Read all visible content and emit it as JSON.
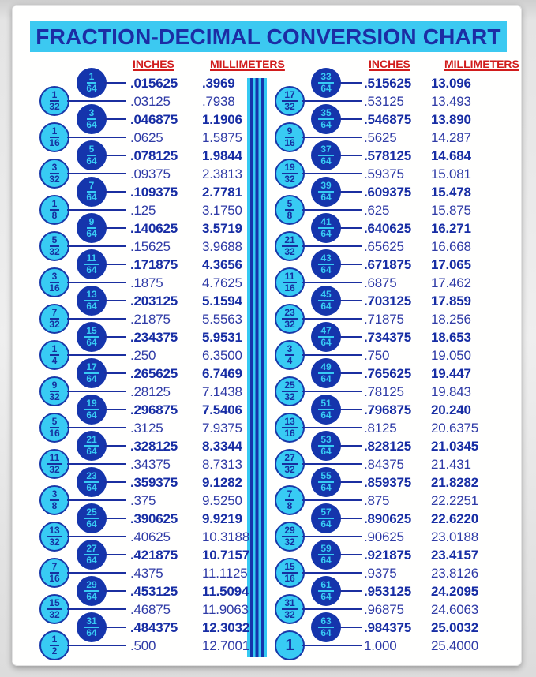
{
  "title": "FRACTION-DECIMAL CONVERSION CHART",
  "colors": {
    "cyan_accent": "#38cbf4",
    "navy_circle": "#1535ac",
    "navy_text": "#1c2da4",
    "header_red": "#d11c1c"
  },
  "columns": [
    {
      "headers": {
        "inches": "INCHES",
        "millimeters": "MILLIMETERS"
      },
      "rows": [
        {
          "fraction": "1/64",
          "num": "1",
          "den": "64",
          "in": ".015625",
          "mm": ".3969",
          "emph": true
        },
        {
          "fraction": "1/32",
          "num": "1",
          "den": "32",
          "in": ".03125",
          "mm": ".7938",
          "emph": false
        },
        {
          "fraction": "3/64",
          "num": "3",
          "den": "64",
          "in": ".046875",
          "mm": "1.1906",
          "emph": true
        },
        {
          "fraction": "1/16",
          "num": "1",
          "den": "16",
          "in": ".0625",
          "mm": "1.5875",
          "emph": false
        },
        {
          "fraction": "5/64",
          "num": "5",
          "den": "64",
          "in": ".078125",
          "mm": "1.9844",
          "emph": true
        },
        {
          "fraction": "3/32",
          "num": "3",
          "den": "32",
          "in": ".09375",
          "mm": "2.3813",
          "emph": false
        },
        {
          "fraction": "7/64",
          "num": "7",
          "den": "64",
          "in": ".109375",
          "mm": "2.7781",
          "emph": true
        },
        {
          "fraction": "1/8",
          "num": "1",
          "den": "8",
          "in": ".125",
          "mm": "3.1750",
          "emph": false
        },
        {
          "fraction": "9/64",
          "num": "9",
          "den": "64",
          "in": ".140625",
          "mm": "3.5719",
          "emph": true
        },
        {
          "fraction": "5/32",
          "num": "5",
          "den": "32",
          "in": ".15625",
          "mm": "3.9688",
          "emph": false
        },
        {
          "fraction": "11/64",
          "num": "11",
          "den": "64",
          "in": ".171875",
          "mm": "4.3656",
          "emph": true
        },
        {
          "fraction": "3/16",
          "num": "3",
          "den": "16",
          "in": ".1875",
          "mm": "4.7625",
          "emph": false
        },
        {
          "fraction": "13/64",
          "num": "13",
          "den": "64",
          "in": ".203125",
          "mm": "5.1594",
          "emph": true
        },
        {
          "fraction": "7/32",
          "num": "7",
          "den": "32",
          "in": ".21875",
          "mm": "5.5563",
          "emph": false
        },
        {
          "fraction": "15/64",
          "num": "15",
          "den": "64",
          "in": ".234375",
          "mm": "5.9531",
          "emph": true
        },
        {
          "fraction": "1/4",
          "num": "1",
          "den": "4",
          "in": ".250",
          "mm": "6.3500",
          "emph": false
        },
        {
          "fraction": "17/64",
          "num": "17",
          "den": "64",
          "in": ".265625",
          "mm": "6.7469",
          "emph": true
        },
        {
          "fraction": "9/32",
          "num": "9",
          "den": "32",
          "in": ".28125",
          "mm": "7.1438",
          "emph": false
        },
        {
          "fraction": "19/64",
          "num": "19",
          "den": "64",
          "in": ".296875",
          "mm": "7.5406",
          "emph": true
        },
        {
          "fraction": "5/16",
          "num": "5",
          "den": "16",
          "in": ".3125",
          "mm": "7.9375",
          "emph": false
        },
        {
          "fraction": "21/64",
          "num": "21",
          "den": "64",
          "in": ".328125",
          "mm": "8.3344",
          "emph": true
        },
        {
          "fraction": "11/32",
          "num": "11",
          "den": "32",
          "in": ".34375",
          "mm": "8.7313",
          "emph": false
        },
        {
          "fraction": "23/64",
          "num": "23",
          "den": "64",
          "in": ".359375",
          "mm": "9.1282",
          "emph": true
        },
        {
          "fraction": "3/8",
          "num": "3",
          "den": "8",
          "in": ".375",
          "mm": "9.5250",
          "emph": false
        },
        {
          "fraction": "25/64",
          "num": "25",
          "den": "64",
          "in": ".390625",
          "mm": "9.9219",
          "emph": true
        },
        {
          "fraction": "13/32",
          "num": "13",
          "den": "32",
          "in": ".40625",
          "mm": "10.3188",
          "emph": false
        },
        {
          "fraction": "27/64",
          "num": "27",
          "den": "64",
          "in": ".421875",
          "mm": "10.7157",
          "emph": true
        },
        {
          "fraction": "7/16",
          "num": "7",
          "den": "16",
          "in": ".4375",
          "mm": "11.1125",
          "emph": false
        },
        {
          "fraction": "29/64",
          "num": "29",
          "den": "64",
          "in": ".453125",
          "mm": "11.5094",
          "emph": true
        },
        {
          "fraction": "15/32",
          "num": "15",
          "den": "32",
          "in": ".46875",
          "mm": "11.9063",
          "emph": false
        },
        {
          "fraction": "31/64",
          "num": "31",
          "den": "64",
          "in": ".484375",
          "mm": "12.3032",
          "emph": true
        },
        {
          "fraction": "1/2",
          "num": "1",
          "den": "2",
          "in": ".500",
          "mm": "12.7001",
          "emph": false
        }
      ]
    },
    {
      "headers": {
        "inches": "INCHES",
        "millimeters": "MILLIMETERS"
      },
      "rows": [
        {
          "fraction": "33/64",
          "num": "33",
          "den": "64",
          "in": ".515625",
          "mm": "13.096",
          "emph": true
        },
        {
          "fraction": "17/32",
          "num": "17",
          "den": "32",
          "in": ".53125",
          "mm": "13.493",
          "emph": false
        },
        {
          "fraction": "35/64",
          "num": "35",
          "den": "64",
          "in": ".546875",
          "mm": "13.890",
          "emph": true
        },
        {
          "fraction": "9/16",
          "num": "9",
          "den": "16",
          "in": ".5625",
          "mm": "14.287",
          "emph": false
        },
        {
          "fraction": "37/64",
          "num": "37",
          "den": "64",
          "in": ".578125",
          "mm": "14.684",
          "emph": true
        },
        {
          "fraction": "19/32",
          "num": "19",
          "den": "32",
          "in": ".59375",
          "mm": "15.081",
          "emph": false
        },
        {
          "fraction": "39/64",
          "num": "39",
          "den": "64",
          "in": ".609375",
          "mm": "15.478",
          "emph": true
        },
        {
          "fraction": "5/8",
          "num": "5",
          "den": "8",
          "in": ".625",
          "mm": "15.875",
          "emph": false
        },
        {
          "fraction": "41/64",
          "num": "41",
          "den": "64",
          "in": ".640625",
          "mm": "16.271",
          "emph": true
        },
        {
          "fraction": "21/32",
          "num": "21",
          "den": "32",
          "in": ".65625",
          "mm": "16.668",
          "emph": false
        },
        {
          "fraction": "43/64",
          "num": "43",
          "den": "64",
          "in": ".671875",
          "mm": "17.065",
          "emph": true
        },
        {
          "fraction": "11/16",
          "num": "11",
          "den": "16",
          "in": ".6875",
          "mm": "17.462",
          "emph": false
        },
        {
          "fraction": "45/64",
          "num": "45",
          "den": "64",
          "in": ".703125",
          "mm": "17.859",
          "emph": true
        },
        {
          "fraction": "23/32",
          "num": "23",
          "den": "32",
          "in": ".71875",
          "mm": "18.256",
          "emph": false
        },
        {
          "fraction": "47/64",
          "num": "47",
          "den": "64",
          "in": ".734375",
          "mm": "18.653",
          "emph": true
        },
        {
          "fraction": "3/4",
          "num": "3",
          "den": "4",
          "in": ".750",
          "mm": "19.050",
          "emph": false
        },
        {
          "fraction": "49/64",
          "num": "49",
          "den": "64",
          "in": ".765625",
          "mm": "19.447",
          "emph": true
        },
        {
          "fraction": "25/32",
          "num": "25",
          "den": "32",
          "in": ".78125",
          "mm": "19.843",
          "emph": false
        },
        {
          "fraction": "51/64",
          "num": "51",
          "den": "64",
          "in": ".796875",
          "mm": "20.240",
          "emph": true
        },
        {
          "fraction": "13/16",
          "num": "13",
          "den": "16",
          "in": ".8125",
          "mm": "20.6375",
          "emph": false
        },
        {
          "fraction": "53/64",
          "num": "53",
          "den": "64",
          "in": ".828125",
          "mm": "21.0345",
          "emph": true
        },
        {
          "fraction": "27/32",
          "num": "27",
          "den": "32",
          "in": ".84375",
          "mm": "21.431",
          "emph": false
        },
        {
          "fraction": "55/64",
          "num": "55",
          "den": "64",
          "in": ".859375",
          "mm": "21.8282",
          "emph": true
        },
        {
          "fraction": "7/8",
          "num": "7",
          "den": "8",
          "in": ".875",
          "mm": "22.2251",
          "emph": false
        },
        {
          "fraction": "57/64",
          "num": "57",
          "den": "64",
          "in": ".890625",
          "mm": "22.6220",
          "emph": true
        },
        {
          "fraction": "29/32",
          "num": "29",
          "den": "32",
          "in": ".90625",
          "mm": "23.0188",
          "emph": false
        },
        {
          "fraction": "59/64",
          "num": "59",
          "den": "64",
          "in": ".921875",
          "mm": "23.4157",
          "emph": true
        },
        {
          "fraction": "15/16",
          "num": "15",
          "den": "16",
          "in": ".9375",
          "mm": "23.8126",
          "emph": false
        },
        {
          "fraction": "61/64",
          "num": "61",
          "den": "64",
          "in": ".953125",
          "mm": "24.2095",
          "emph": true
        },
        {
          "fraction": "31/32",
          "num": "31",
          "den": "32",
          "in": ".96875",
          "mm": "24.6063",
          "emph": false
        },
        {
          "fraction": "63/64",
          "num": "63",
          "den": "64",
          "in": ".984375",
          "mm": "25.0032",
          "emph": true
        },
        {
          "fraction": "1",
          "num": "1",
          "den": "",
          "in": "1.000",
          "mm": "25.4000",
          "emph": false
        }
      ]
    }
  ]
}
